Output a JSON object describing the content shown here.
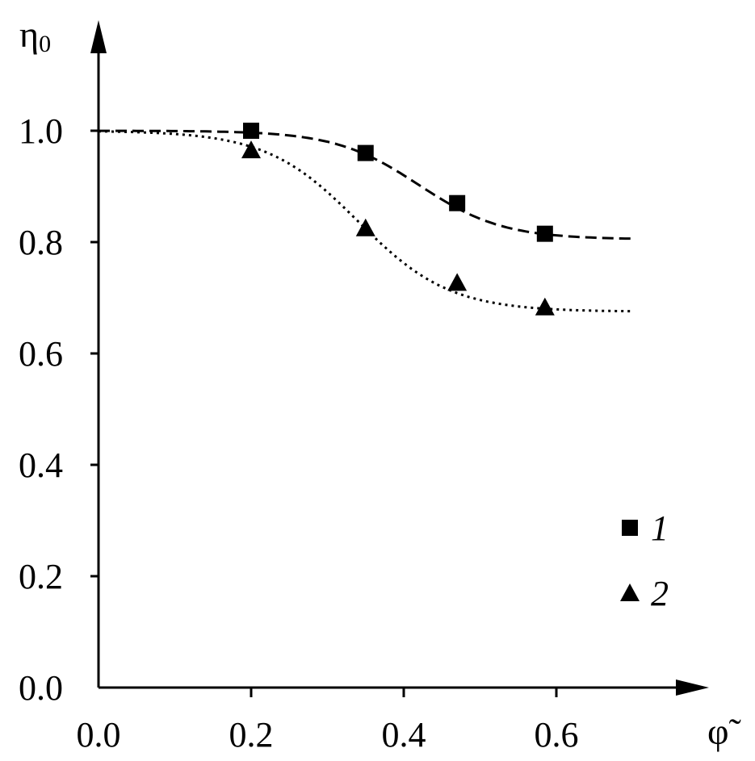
{
  "chart_data": {
    "type": "line",
    "title": "",
    "xlabel": "φ̃",
    "ylabel": {
      "main": "η",
      "sub": "0"
    },
    "xlim": [
      0.0,
      0.72
    ],
    "ylim": [
      0.0,
      1.15
    ],
    "xticks": [
      {
        "value": 0.0,
        "label": "0.0"
      },
      {
        "value": 0.2,
        "label": "0.2"
      },
      {
        "value": 0.4,
        "label": "0.4"
      },
      {
        "value": 0.6,
        "label": "0.6"
      }
    ],
    "yticks": [
      {
        "value": 0.0,
        "label": "0.0"
      },
      {
        "value": 0.2,
        "label": "0.2"
      },
      {
        "value": 0.4,
        "label": "0.4"
      },
      {
        "value": 0.6,
        "label": "0.6"
      },
      {
        "value": 0.8,
        "label": "0.8"
      },
      {
        "value": 1.0,
        "label": "1.0"
      }
    ],
    "grid": false,
    "legend_position": "bottom-right",
    "series": [
      {
        "name": "1",
        "marker": "square",
        "line_style": "dashed",
        "color": "#000000",
        "points": [
          {
            "x": 0.2,
            "y": 1.0
          },
          {
            "x": 0.35,
            "y": 0.96
          },
          {
            "x": 0.47,
            "y": 0.87
          },
          {
            "x": 0.585,
            "y": 0.815
          }
        ],
        "fit": {
          "x": [
            0.0,
            0.7
          ],
          "high": 1.0,
          "low": 0.805,
          "center": 0.42,
          "width": 0.055
        }
      },
      {
        "name": "2",
        "marker": "triangle",
        "line_style": "dotted",
        "color": "#000000",
        "points": [
          {
            "x": 0.2,
            "y": 0.965
          },
          {
            "x": 0.35,
            "y": 0.825
          },
          {
            "x": 0.47,
            "y": 0.727
          },
          {
            "x": 0.585,
            "y": 0.683
          }
        ],
        "fit": {
          "x": [
            0.0,
            0.7
          ],
          "high": 1.0,
          "low": 0.675,
          "center": 0.34,
          "width": 0.06
        }
      }
    ]
  }
}
